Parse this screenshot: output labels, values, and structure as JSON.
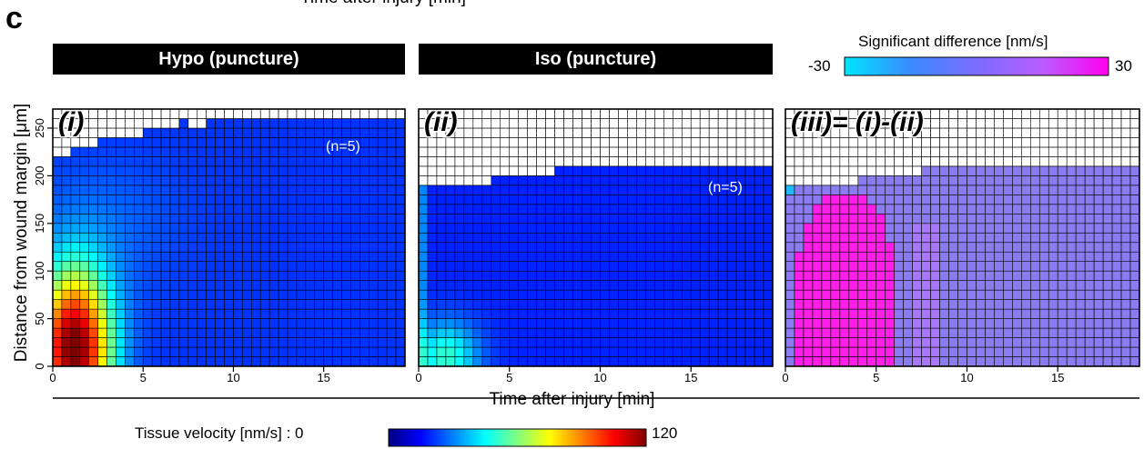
{
  "figure": {
    "cut_title": "Time after injury [min]",
    "letter": "c",
    "ylabel": "Distance from wound margin [μm]",
    "xlabel": "Time after injury [min]"
  },
  "panels": [
    {
      "banner": "Hypo (puncture)",
      "tag": "(i)",
      "n_label": "(n=5)"
    },
    {
      "banner": "Iso (puncture)",
      "tag": "(ii)",
      "n_label": "(n=5)"
    },
    {
      "banner": "",
      "tag": "(iii)= (i)-(ii)",
      "n_label": ""
    }
  ],
  "colorbars": {
    "significance": {
      "title": "Significant difference [nm/s]",
      "min": "-30",
      "max": "30",
      "colors": [
        "#00e5ff",
        "#3a8bff",
        "#7b6cff",
        "#b95cff",
        "#ff00ee"
      ]
    },
    "velocity": {
      "title": "Tissue velocity [nm/s] : 0",
      "max": "120",
      "colors": [
        "#000080",
        "#0000ff",
        "#0080ff",
        "#00ffff",
        "#80ff80",
        "#ffff00",
        "#ff8000",
        "#ff0000",
        "#800000"
      ]
    }
  },
  "chart_data": [
    {
      "type": "heatmap",
      "title": "Hypo (puncture)",
      "xlabel": "Time after injury [min]",
      "ylabel": "Distance from wound margin [μm]",
      "xlim": [
        0,
        19.5
      ],
      "ylim": [
        0,
        270
      ],
      "xticks": [
        0,
        5,
        10,
        15
      ],
      "yticks": [
        0,
        50,
        100,
        150,
        200,
        250
      ],
      "grid_step": {
        "x": 0.5,
        "y": 10
      },
      "value_unit": "nm/s",
      "color_range": [
        0,
        120
      ],
      "coverage_top_um": [
        [
          0,
          220
        ],
        [
          1,
          230
        ],
        [
          2.5,
          240
        ],
        [
          5,
          250
        ],
        [
          7,
          260
        ],
        [
          7.5,
          250
        ],
        [
          8.5,
          260
        ],
        [
          19.5,
          260
        ]
      ],
      "hotspot": {
        "time_min": 1.2,
        "distance_um": 20,
        "peak_nm_s": 118
      },
      "annotation": "(n=5)"
    },
    {
      "type": "heatmap",
      "title": "Iso (puncture)",
      "xlabel": "Time after injury [min]",
      "xlim": [
        0,
        19.5
      ],
      "ylim": [
        0,
        270
      ],
      "xticks": [
        0,
        5,
        10,
        15
      ],
      "grid_step": {
        "x": 0.5,
        "y": 10
      },
      "value_unit": "nm/s",
      "color_range": [
        0,
        120
      ],
      "coverage_top_um": [
        [
          0,
          190
        ],
        [
          4,
          200
        ],
        [
          7.5,
          210
        ],
        [
          19.5,
          210
        ]
      ],
      "hotspot": {
        "time_min": 1.5,
        "distance_um": 10,
        "peak_nm_s": 45
      },
      "annotation": "(n=5)"
    },
    {
      "type": "heatmap",
      "title": "(iii)= (i)-(ii)",
      "xlabel": "Time after injury [min]",
      "xlim": [
        0,
        19.5
      ],
      "ylim": [
        0,
        270
      ],
      "xticks": [
        0,
        5,
        10,
        15
      ],
      "grid_step": {
        "x": 0.5,
        "y": 10
      },
      "value_unit": "nm/s",
      "color_range": [
        -30,
        30
      ],
      "coverage_top_um": [
        [
          0,
          190
        ],
        [
          4,
          200
        ],
        [
          7.5,
          210
        ],
        [
          19.5,
          210
        ]
      ],
      "significant_region": {
        "time_min": [
          0.5,
          6
        ],
        "distance_um": [
          0,
          190
        ],
        "value_nm_s": 30
      }
    }
  ]
}
